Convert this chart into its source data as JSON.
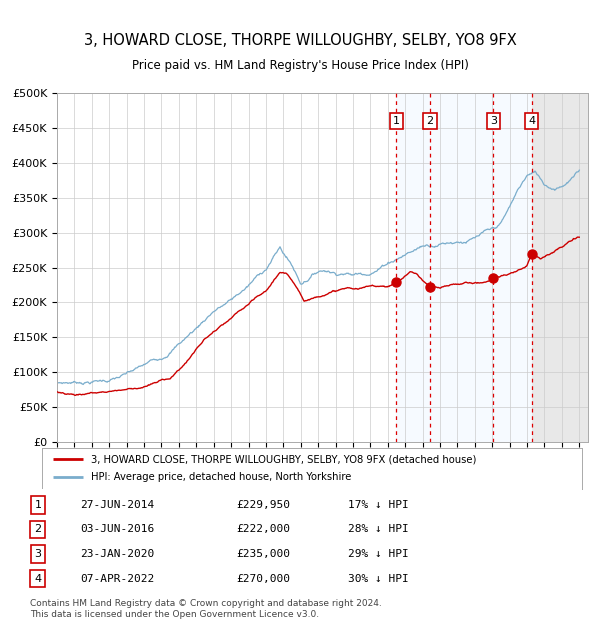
{
  "title": "3, HOWARD CLOSE, THORPE WILLOUGHBY, SELBY, YO8 9FX",
  "subtitle": "Price paid vs. HM Land Registry's House Price Index (HPI)",
  "title_fontsize": 10.5,
  "subtitle_fontsize": 9,
  "ylim": [
    0,
    500000
  ],
  "yticks": [
    0,
    50000,
    100000,
    150000,
    200000,
    250000,
    300000,
    350000,
    400000,
    450000,
    500000
  ],
  "xlim_start": 1995.0,
  "xlim_end": 2025.5,
  "transactions": [
    {
      "label": "1",
      "date": 2014.49,
      "price": 229950,
      "date_str": "27-JUN-2014",
      "price_str": "£229,950",
      "hpi_pct": "17%"
    },
    {
      "label": "2",
      "date": 2016.42,
      "price": 222000,
      "date_str": "03-JUN-2016",
      "price_str": "£222,000",
      "hpi_pct": "28%"
    },
    {
      "label": "3",
      "date": 2020.07,
      "price": 235000,
      "date_str": "23-JAN-2020",
      "price_str": "£235,000",
      "hpi_pct": "29%"
    },
    {
      "label": "4",
      "date": 2022.27,
      "price": 270000,
      "date_str": "07-APR-2022",
      "price_str": "£270,000",
      "hpi_pct": "30%"
    }
  ],
  "red_line_color": "#cc0000",
  "blue_line_color": "#7aadcc",
  "background_color": "#ffffff",
  "plot_bg_color": "#ffffff",
  "shaded_region_color": "#ddeeff",
  "grid_color": "#cccccc",
  "legend_line1": "3, HOWARD CLOSE, THORPE WILLOUGHBY, SELBY, YO8 9FX (detached house)",
  "legend_line2": "HPI: Average price, detached house, North Yorkshire",
  "footer1": "Contains HM Land Registry data © Crown copyright and database right 2024.",
  "footer2": "This data is licensed under the Open Government Licence v3.0.",
  "hpi_anchors": [
    [
      1995.0,
      85000
    ],
    [
      1996.0,
      87000
    ],
    [
      1997.0,
      90000
    ],
    [
      1998.0,
      93000
    ],
    [
      1999.0,
      100000
    ],
    [
      2000.0,
      110000
    ],
    [
      2001.0,
      122000
    ],
    [
      2002.0,
      145000
    ],
    [
      2003.0,
      168000
    ],
    [
      2004.0,
      195000
    ],
    [
      2005.0,
      210000
    ],
    [
      2006.0,
      230000
    ],
    [
      2007.0,
      255000
    ],
    [
      2007.8,
      285000
    ],
    [
      2008.5,
      260000
    ],
    [
      2009.0,
      235000
    ],
    [
      2009.5,
      245000
    ],
    [
      2010.0,
      255000
    ],
    [
      2010.5,
      258000
    ],
    [
      2011.0,
      255000
    ],
    [
      2011.5,
      258000
    ],
    [
      2012.0,
      255000
    ],
    [
      2012.5,
      258000
    ],
    [
      2013.0,
      262000
    ],
    [
      2013.5,
      268000
    ],
    [
      2014.0,
      278000
    ],
    [
      2014.5,
      285000
    ],
    [
      2015.0,
      292000
    ],
    [
      2015.5,
      298000
    ],
    [
      2016.0,
      305000
    ],
    [
      2016.5,
      308000
    ],
    [
      2017.0,
      312000
    ],
    [
      2017.5,
      315000
    ],
    [
      2018.0,
      318000
    ],
    [
      2018.5,
      320000
    ],
    [
      2019.0,
      323000
    ],
    [
      2019.5,
      328000
    ],
    [
      2020.0,
      330000
    ],
    [
      2020.5,
      338000
    ],
    [
      2021.0,
      360000
    ],
    [
      2021.5,
      385000
    ],
    [
      2022.0,
      405000
    ],
    [
      2022.5,
      408000
    ],
    [
      2023.0,
      392000
    ],
    [
      2023.5,
      388000
    ],
    [
      2024.0,
      395000
    ],
    [
      2024.5,
      405000
    ],
    [
      2025.0,
      415000
    ]
  ],
  "red_anchors": [
    [
      1995.0,
      72000
    ],
    [
      1995.5,
      71000
    ],
    [
      1996.0,
      70500
    ],
    [
      1996.5,
      71000
    ],
    [
      1997.0,
      73000
    ],
    [
      1997.5,
      74000
    ],
    [
      1998.0,
      76000
    ],
    [
      1998.5,
      78000
    ],
    [
      1999.0,
      80000
    ],
    [
      1999.5,
      82000
    ],
    [
      2000.0,
      85000
    ],
    [
      2000.5,
      88000
    ],
    [
      2001.0,
      92000
    ],
    [
      2001.5,
      96000
    ],
    [
      2002.0,
      108000
    ],
    [
      2002.5,
      122000
    ],
    [
      2003.0,
      138000
    ],
    [
      2003.5,
      152000
    ],
    [
      2004.0,
      162000
    ],
    [
      2004.5,
      170000
    ],
    [
      2005.0,
      178000
    ],
    [
      2005.5,
      188000
    ],
    [
      2006.0,
      196000
    ],
    [
      2006.5,
      205000
    ],
    [
      2007.0,
      212000
    ],
    [
      2007.5,
      230000
    ],
    [
      2007.8,
      240000
    ],
    [
      2008.2,
      235000
    ],
    [
      2008.8,
      218000
    ],
    [
      2009.2,
      200000
    ],
    [
      2009.8,
      205000
    ],
    [
      2010.3,
      212000
    ],
    [
      2010.8,
      215000
    ],
    [
      2011.2,
      218000
    ],
    [
      2011.8,
      220000
    ],
    [
      2012.3,
      218000
    ],
    [
      2012.8,
      220000
    ],
    [
      2013.3,
      222000
    ],
    [
      2013.8,
      223000
    ],
    [
      2014.2,
      225000
    ],
    [
      2014.49,
      229950
    ],
    [
      2014.7,
      232000
    ],
    [
      2015.0,
      238000
    ],
    [
      2015.3,
      245000
    ],
    [
      2015.7,
      240000
    ],
    [
      2016.0,
      232000
    ],
    [
      2016.42,
      222000
    ],
    [
      2016.7,
      220000
    ],
    [
      2017.0,
      218000
    ],
    [
      2017.3,
      220000
    ],
    [
      2017.8,
      222000
    ],
    [
      2018.3,
      224000
    ],
    [
      2018.8,
      226000
    ],
    [
      2019.3,
      226000
    ],
    [
      2019.8,
      228000
    ],
    [
      2020.07,
      235000
    ],
    [
      2020.4,
      236000
    ],
    [
      2020.8,
      238000
    ],
    [
      2021.2,
      240000
    ],
    [
      2021.5,
      244000
    ],
    [
      2021.8,
      248000
    ],
    [
      2022.0,
      252000
    ],
    [
      2022.27,
      270000
    ],
    [
      2022.5,
      268000
    ],
    [
      2022.8,
      265000
    ],
    [
      2023.0,
      268000
    ],
    [
      2023.3,
      272000
    ],
    [
      2023.6,
      276000
    ],
    [
      2024.0,
      280000
    ],
    [
      2024.5,
      288000
    ],
    [
      2025.0,
      292000
    ]
  ]
}
